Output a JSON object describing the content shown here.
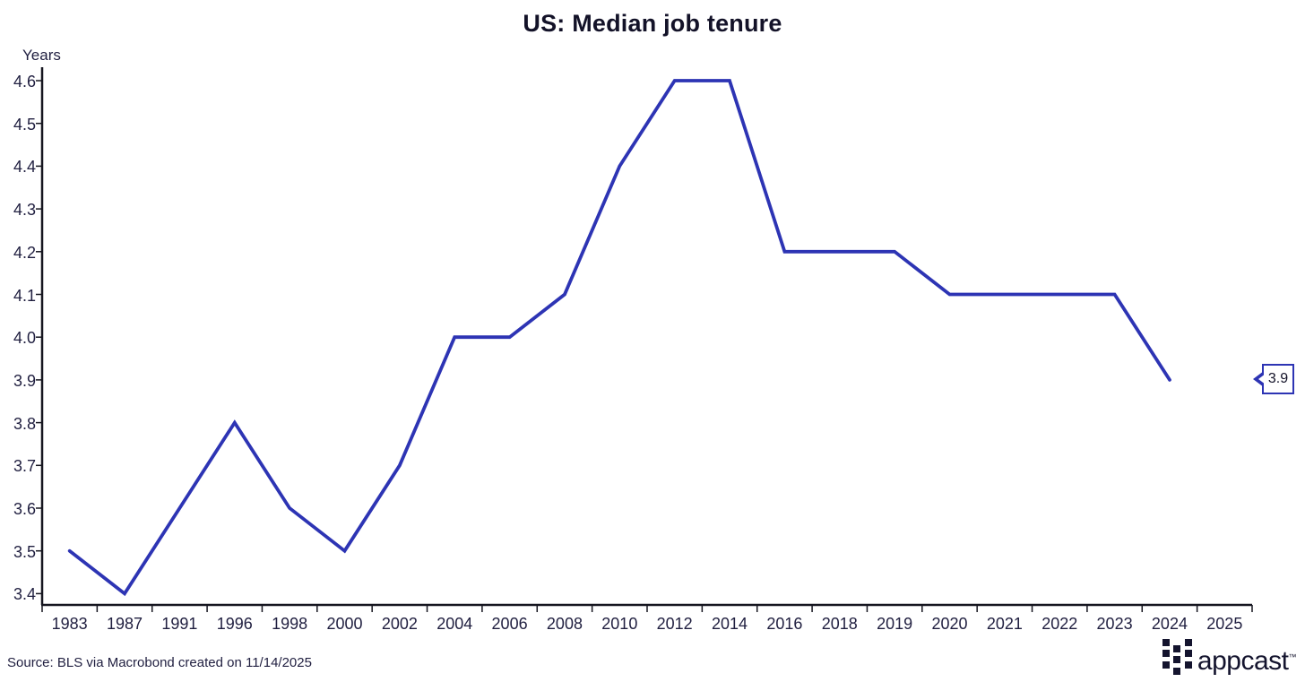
{
  "title": "US: Median job tenure",
  "y_axis_title": "Years",
  "source_note": "Source: BLS via Macrobond created on 11/14/2025",
  "annotation": {
    "last_value": "3.9"
  },
  "logo": {
    "wordmark": "appcast",
    "trademark": "™"
  },
  "colors": {
    "line": "#2d34b4",
    "axis": "#15151f",
    "tick_text": "#201f40",
    "title_text": "#131228",
    "callout_border": "#2d34b4",
    "background": "#ffffff"
  },
  "chart_data": {
    "type": "line",
    "title": "US: Median job tenure",
    "xlabel": "",
    "ylabel": "Years",
    "categories": [
      "1983",
      "1987",
      "1991",
      "1996",
      "1998",
      "2000",
      "2002",
      "2004",
      "2006",
      "2008",
      "2010",
      "2012",
      "2014",
      "2016",
      "2018",
      "2019",
      "2020",
      "2021",
      "2022",
      "2023",
      "2024",
      "2025"
    ],
    "series": [
      {
        "name": "US median job tenure (years)",
        "values": [
          3.5,
          3.4,
          3.6,
          3.8,
          3.6,
          3.5,
          3.7,
          4.0,
          4.0,
          4.1,
          4.4,
          4.6,
          4.6,
          4.2,
          4.2,
          4.2,
          4.1,
          4.1,
          4.1,
          4.1,
          3.9,
          null
        ]
      }
    ],
    "ylim": [
      3.4,
      4.6
    ],
    "y_ticks": [
      3.4,
      3.5,
      3.6,
      3.7,
      3.8,
      3.9,
      4.0,
      4.1,
      4.2,
      4.3,
      4.4,
      4.5,
      4.6
    ],
    "grid": false,
    "legend": false,
    "line_color": "#2d34b4",
    "last_value_label": "3.9"
  }
}
